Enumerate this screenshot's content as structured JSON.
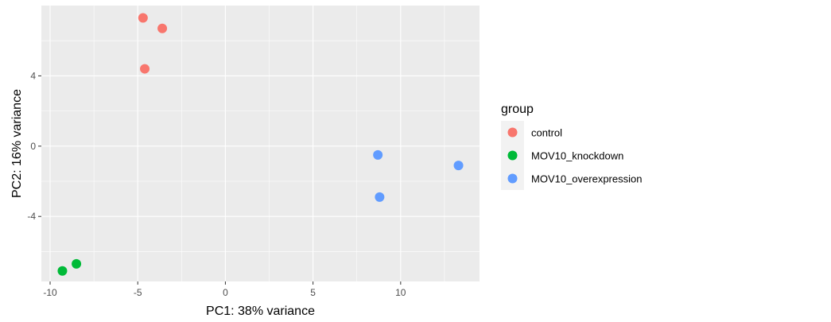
{
  "chart_data": {
    "type": "scatter",
    "xlabel": "PC1: 38% variance",
    "ylabel": "PC2: 16% variance",
    "xlim": [
      -10.5,
      14.5
    ],
    "ylim": [
      -7.7,
      8.0
    ],
    "x_ticks": [
      -10,
      -5,
      0,
      5,
      10
    ],
    "y_ticks": [
      -4,
      0,
      4
    ],
    "x_tick_labels": [
      "-10",
      "-5",
      "0",
      "5",
      "10"
    ],
    "y_tick_labels": [
      "-4",
      "0",
      "4"
    ],
    "grid": true,
    "legend": {
      "title": "group",
      "placement": "right",
      "entries": [
        "control",
        "MOV10_knockdown",
        "MOV10_overexpression"
      ]
    },
    "series": [
      {
        "name": "control",
        "color": "#F8766D",
        "points": [
          {
            "x": -4.7,
            "y": 7.3
          },
          {
            "x": -3.6,
            "y": 6.7
          },
          {
            "x": -4.6,
            "y": 4.4
          }
        ]
      },
      {
        "name": "MOV10_knockdown",
        "color": "#00BA38",
        "points": [
          {
            "x": -8.5,
            "y": -6.7
          },
          {
            "x": -9.3,
            "y": -7.1
          }
        ]
      },
      {
        "name": "MOV10_overexpression",
        "color": "#619CFF",
        "points": [
          {
            "x": 8.7,
            "y": -0.5
          },
          {
            "x": 13.3,
            "y": -1.1
          },
          {
            "x": 8.8,
            "y": -2.9
          }
        ]
      }
    ]
  }
}
